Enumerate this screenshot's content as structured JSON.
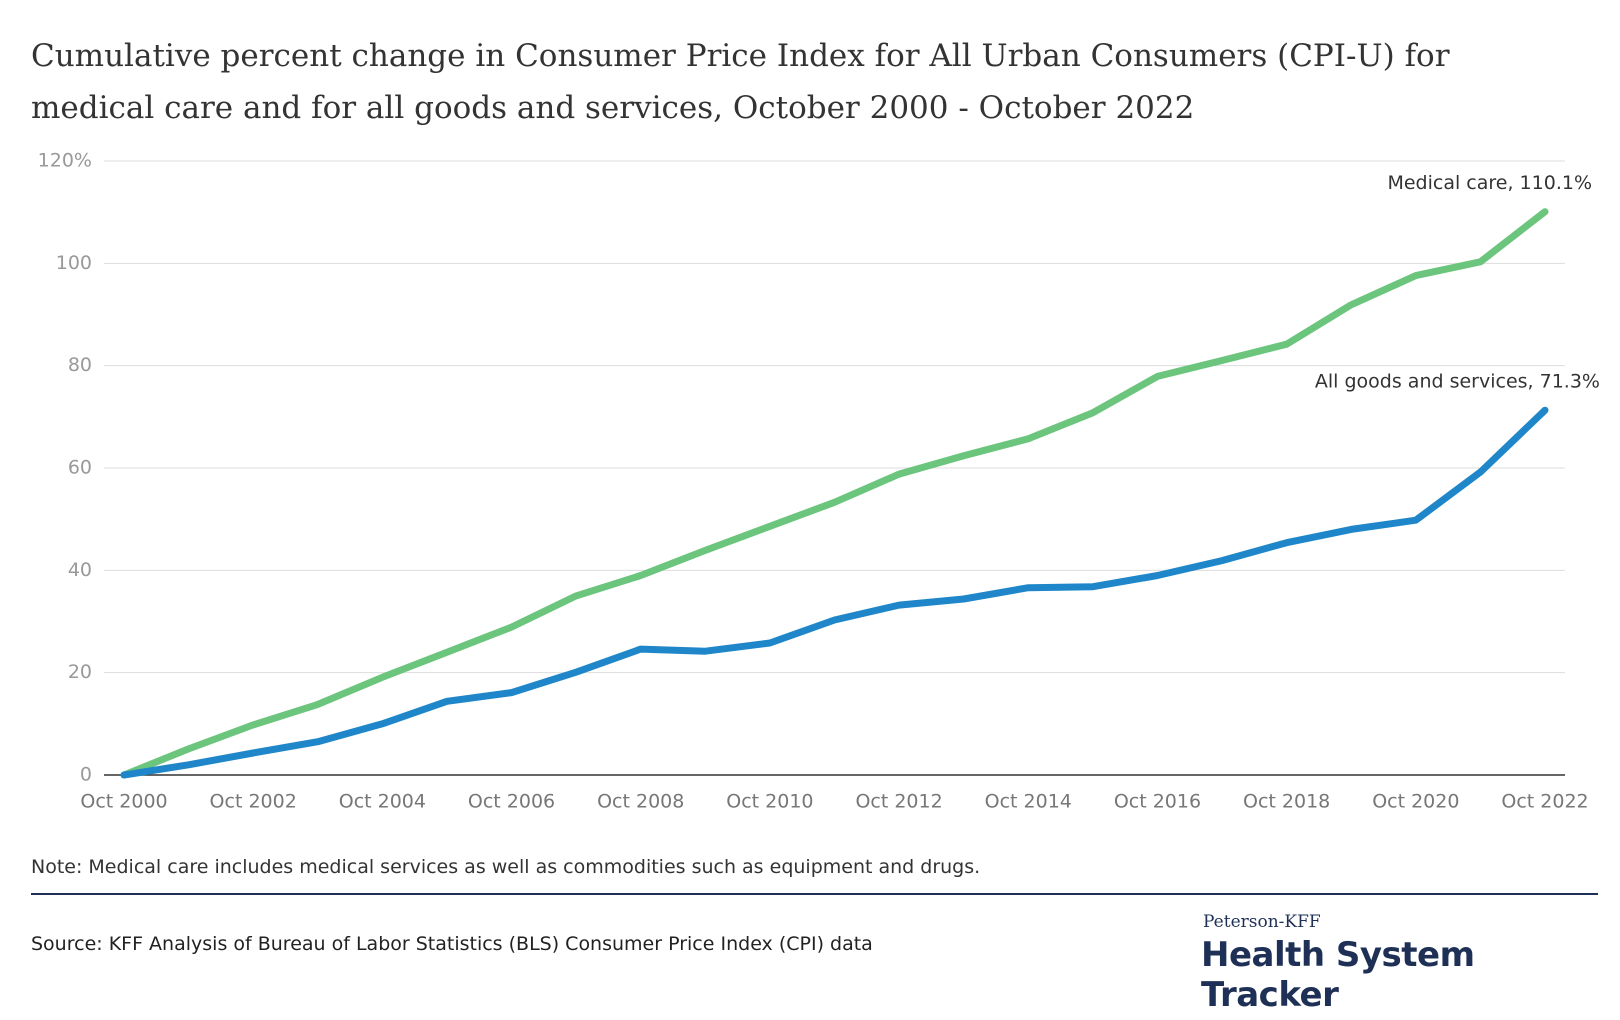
{
  "chart_data": {
    "type": "line",
    "title": "Cumulative percent change in Consumer Price Index for All Urban Consumers (CPI-U) for medical care and for all goods and services, October 2000 - October 2022",
    "categories": [
      "Oct 2000",
      null,
      "Oct 2002",
      null,
      "Oct 2004",
      null,
      "Oct 2006",
      null,
      "Oct 2008",
      null,
      "Oct 2010",
      null,
      "Oct 2012",
      null,
      "Oct 2014",
      null,
      "Oct 2016",
      null,
      "Oct 2018",
      null,
      "Oct 2020",
      null,
      "Oct 2022"
    ],
    "series": [
      {
        "name": "Medical care",
        "color": "#6cc57c",
        "values": [
          0,
          5.1,
          9.8,
          13.8,
          19.1,
          24.0,
          28.9,
          35.0,
          39.0,
          43.9,
          48.6,
          53.3,
          58.8,
          62.4,
          65.7,
          70.8,
          77.9,
          81.0,
          84.2,
          91.9,
          97.6,
          100.3,
          110.1
        ]
      },
      {
        "name": "All goods and services",
        "color": "#1f87c9",
        "values": [
          0,
          2.0,
          4.3,
          6.5,
          10.0,
          14.4,
          16.1,
          20.1,
          24.6,
          24.2,
          25.8,
          30.3,
          33.2,
          34.4,
          36.6,
          36.8,
          39.0,
          41.9,
          45.4,
          48.0,
          49.8,
          59.2,
          71.3
        ]
      }
    ],
    "annotations": [
      "Medical care, 110.1%",
      "All goods and services, 71.3%"
    ],
    "ylim": [
      0,
      120
    ],
    "yticks": [
      0,
      20,
      40,
      60,
      80,
      100,
      {
        "value": 120,
        "label": "120%"
      }
    ],
    "grid": true
  },
  "note": "Note: Medical care includes medical services as well as commodities such as equipment and drugs.",
  "source": "Source: KFF Analysis of Bureau of Labor Statistics (BLS) Consumer Price Index (CPI) data",
  "logo": {
    "top": "Peterson-KFF",
    "main": "Health System Tracker"
  }
}
